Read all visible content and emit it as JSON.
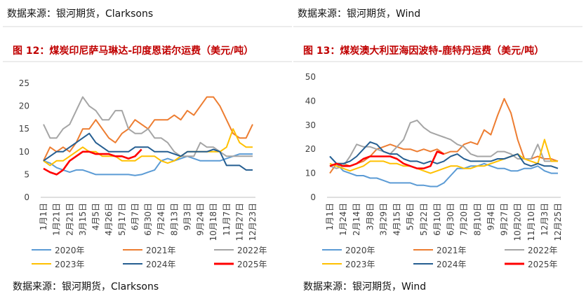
{
  "chart_data": [
    {
      "type": "line",
      "header_source": "数据来源：银河期货，Clarksons",
      "title": "图 12：煤炭印尼萨马琳达-印度恩诺尔运费（美元/吨）",
      "footer_source": "数据来源：银河期货，Clarksons",
      "categories": [
        "1月1日",
        null,
        "1月21日",
        null,
        "2月21日",
        null,
        "3月15日",
        null,
        "4月5日",
        null,
        "4月26日",
        null,
        "5月17日",
        null,
        "6月7日",
        null,
        "6月30日",
        null,
        "7月24日",
        null,
        "8月13日",
        null,
        "9月3日",
        null,
        "9月24日",
        null,
        "10月18日",
        null,
        "11月7日",
        null,
        "11月27日",
        null,
        "12月23日"
      ],
      "ylim": [
        0,
        25
      ],
      "yticks": [
        0,
        5,
        10,
        15,
        20,
        25
      ],
      "series": [
        {
          "name": "2020年",
          "color": "#5b9bd5",
          "values": [
            8,
            7.5,
            6.5,
            6,
            5.5,
            6,
            6,
            5.5,
            5,
            5,
            5,
            5,
            5,
            5,
            4.8,
            5,
            5.5,
            6,
            8,
            8.5,
            8,
            8.5,
            9,
            8.5,
            8,
            8,
            8,
            8,
            8.5,
            9,
            9.5,
            9.5,
            9.5
          ]
        },
        {
          "name": "2021年",
          "color": "#ed7d31",
          "values": [
            8,
            11,
            10,
            11,
            10,
            12,
            15,
            15,
            17,
            15,
            13,
            12,
            14,
            15,
            17,
            16,
            15,
            17,
            17,
            17,
            18,
            17,
            19,
            18,
            20,
            22,
            22,
            20,
            17,
            14,
            13,
            13,
            16
          ]
        },
        {
          "name": "2022年",
          "color": "#a5a5a5",
          "values": [
            16,
            13,
            13,
            15,
            16,
            19,
            22,
            20,
            19,
            17,
            17,
            19,
            19,
            15,
            14,
            14,
            15,
            13,
            13,
            12,
            10,
            9,
            9,
            9,
            12,
            11,
            11,
            10,
            9,
            9,
            9,
            9,
            9
          ]
        },
        {
          "name": "2023年",
          "color": "#ffc000",
          "values": [
            8,
            7,
            8,
            8,
            9,
            10,
            11,
            10,
            10,
            9,
            9,
            9,
            8,
            8,
            8,
            9,
            9,
            9,
            8,
            7.5,
            8,
            9,
            10,
            10,
            10,
            10,
            10,
            10,
            11,
            15,
            12,
            11,
            11
          ]
        },
        {
          "name": "2024年",
          "color": "#255e91",
          "values": [
            8,
            9,
            10,
            10,
            11,
            12,
            13,
            14,
            12,
            11,
            10,
            10,
            10,
            10,
            11,
            11,
            11,
            10,
            10,
            10,
            9.5,
            9,
            10,
            10,
            10,
            10,
            10.5,
            10,
            7,
            7,
            7,
            6,
            6
          ]
        },
        {
          "name": "2025年",
          "color": "#ff0000",
          "values": [
            6.3,
            5.5,
            5,
            6,
            8,
            9,
            10,
            10,
            9.5,
            9.5,
            9.5,
            9,
            9,
            8.5,
            9,
            10.5,
            null,
            null,
            null,
            null,
            null,
            null,
            null,
            null,
            null,
            null,
            null,
            null,
            null,
            null,
            null,
            null,
            null
          ]
        }
      ]
    },
    {
      "type": "line",
      "header_source": "数据来源：银河期货，Wind",
      "title": "图 13：煤炭澳大利亚海因波特-鹿特丹运费（美元/吨）",
      "footer_source": "数据来源：银河期货，Wind",
      "categories": [
        "1月1日",
        null,
        "1月24日",
        null,
        "2月14日",
        null,
        "3月8日",
        null,
        "3月29日",
        null,
        "4月15日",
        null,
        "5月6日",
        null,
        "5月22日",
        null,
        "6月10日",
        null,
        "6月30日",
        null,
        "7月20日",
        null,
        "8月10日",
        null,
        "9月4日",
        null,
        "9月27日",
        null,
        "10月20日",
        null,
        "11月10日",
        null,
        "12月3日",
        null,
        "12月25日"
      ],
      "ylim": [
        0,
        50
      ],
      "yticks": [
        0,
        10,
        20,
        30,
        40,
        50
      ],
      "series": [
        {
          "name": "2020年",
          "color": "#5b9bd5",
          "values": [
            17,
            14,
            11,
            10,
            9,
            9,
            8,
            8,
            7,
            6,
            6,
            6,
            6,
            5,
            5,
            4.5,
            4.5,
            6,
            9,
            12,
            12,
            13,
            13,
            14,
            13,
            12,
            12,
            11,
            11,
            12,
            12,
            13,
            11,
            10,
            10
          ]
        },
        {
          "name": "2021年",
          "color": "#ed7d31",
          "values": [
            10,
            14,
            14,
            13,
            14,
            15,
            17,
            20,
            21,
            22,
            21,
            20,
            20,
            19,
            20,
            19,
            20,
            18,
            19,
            19,
            22,
            23,
            22,
            28,
            26,
            34,
            41,
            35,
            24,
            16,
            16,
            17,
            16,
            16,
            15
          ]
        },
        {
          "name": "2022年",
          "color": "#a5a5a5",
          "values": [
            13,
            12,
            13,
            17,
            22,
            21,
            21,
            20,
            19,
            18,
            21,
            24,
            31,
            32,
            29,
            27,
            26,
            25,
            24,
            22,
            21,
            18,
            17,
            17,
            17,
            19,
            19,
            18,
            16,
            16,
            16,
            22,
            15,
            15,
            15
          ]
        },
        {
          "name": "2023年",
          "color": "#ffc000",
          "values": [
            14,
            13,
            12,
            11,
            12,
            13,
            15,
            15,
            15,
            14,
            14,
            13,
            13,
            12,
            11,
            10,
            11,
            12,
            13,
            13,
            12,
            12,
            13,
            13,
            14,
            15,
            16,
            17,
            18,
            16,
            15,
            14,
            24,
            15,
            15
          ]
        },
        {
          "name": "2024年",
          "color": "#255e91",
          "values": [
            17,
            14,
            14,
            15,
            17,
            20,
            23,
            22,
            19,
            18,
            18,
            16,
            15,
            15,
            14,
            15,
            14,
            15,
            17,
            18,
            16,
            15,
            15,
            15,
            15,
            16,
            16,
            17,
            18,
            14,
            13,
            14,
            13,
            13,
            12
          ]
        },
        {
          "name": "2025年",
          "color": "#ff0000",
          "values": [
            13,
            14,
            13,
            13,
            14,
            16,
            17,
            17,
            17,
            17,
            16,
            14,
            13,
            12,
            12,
            13,
            19,
            18,
            null,
            null,
            null,
            null,
            null,
            null,
            null,
            null,
            null,
            null,
            null,
            null,
            null,
            null,
            null,
            null,
            null
          ]
        }
      ]
    }
  ]
}
